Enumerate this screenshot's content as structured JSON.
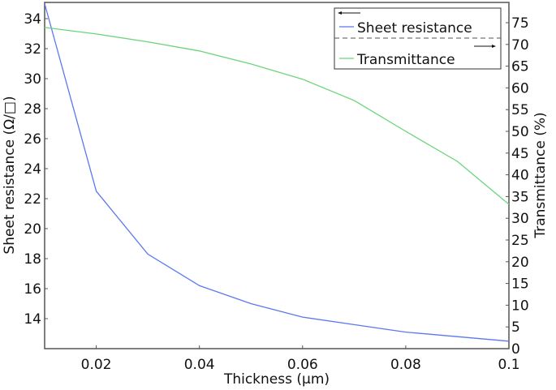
{
  "chart_data": {
    "type": "line",
    "title": "",
    "xlabel": "Thickness (µm)",
    "ylabel": "Sheet resistance (Ω/□)",
    "y2label": "Transmittance (%)",
    "xlim": [
      0.01,
      0.1
    ],
    "ylim": [
      12.2,
      35.2
    ],
    "y2lim": [
      0,
      80
    ],
    "x_ticks": [
      "0.02",
      "0.04",
      "0.06",
      "0.08",
      "0.1"
    ],
    "y_ticks": [
      "14",
      "16",
      "18",
      "20",
      "22",
      "24",
      "26",
      "28",
      "30",
      "32",
      "34"
    ],
    "y2_ticks": [
      "0",
      "5",
      "10",
      "15",
      "20",
      "25",
      "30",
      "35",
      "40",
      "45",
      "50",
      "55",
      "60",
      "65",
      "70",
      "75"
    ],
    "x": [
      0.01,
      0.02,
      0.03,
      0.04,
      0.05,
      0.06,
      0.07,
      0.08,
      0.09,
      0.1
    ],
    "series": [
      {
        "name": "Sheet resistance",
        "axis": "left",
        "color": "#5a78f0",
        "values": [
          35.0,
          22.5,
          18.3,
          16.2,
          15.0,
          14.1,
          13.6,
          13.1,
          12.8,
          12.5
        ]
      },
      {
        "name": "Transmittance",
        "axis": "right",
        "color": "#6cd47a",
        "values": [
          73.9,
          72.4,
          70.6,
          68.5,
          65.5,
          62.0,
          57.1,
          50.0,
          43.1,
          33.2
        ]
      }
    ],
    "grid": false,
    "legend_position": "upper right",
    "legend": {
      "entries": [
        {
          "label": "Sheet resistance",
          "axis_arrow": "left"
        },
        {
          "label": "Transmittance",
          "axis_arrow": "right"
        }
      ]
    }
  }
}
